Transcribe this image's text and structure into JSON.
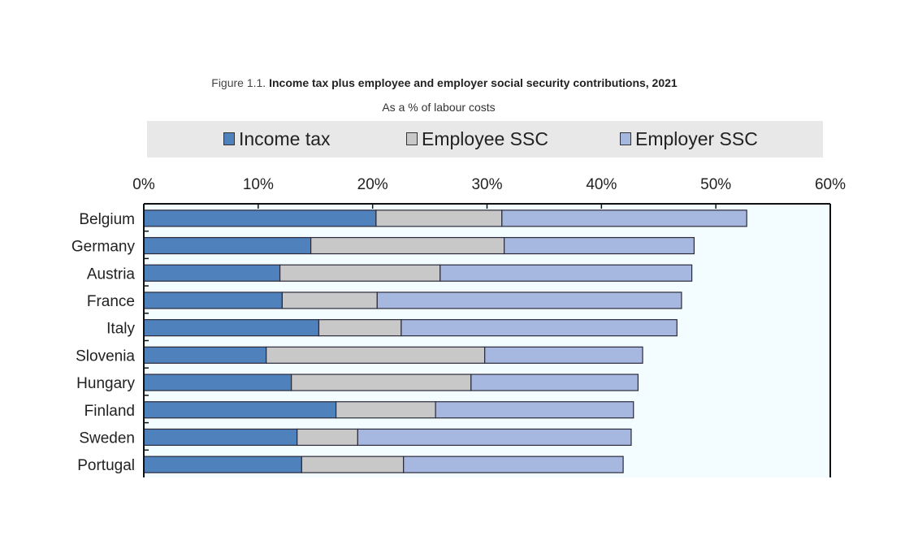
{
  "figure": {
    "prefix": "Figure 1.1.",
    "title": "Income tax plus employee and employer social security contributions, 2021",
    "subtitle": "As a % of labour costs"
  },
  "colors": {
    "income_tax": "#4f81bd",
    "employee_ssc": "#c8c8c8",
    "employer_ssc": "#a6b8e0",
    "plot_bg": "#f3fcff",
    "legend_bg": "#e8e8e8"
  },
  "chart_data": {
    "type": "bar",
    "orientation": "horizontal",
    "stacked": true,
    "title": "Income tax plus employee and employer social security contributions, 2021",
    "subtitle": "As a % of labour costs",
    "xlabel": "",
    "ylabel": "",
    "xlim": [
      0,
      60
    ],
    "x_ticks": [
      "0%",
      "10%",
      "20%",
      "30%",
      "40%",
      "50%",
      "60%"
    ],
    "x_tick_values": [
      0,
      10,
      20,
      30,
      40,
      50,
      60
    ],
    "legend_position": "top",
    "grid": false,
    "categories": [
      "Belgium",
      "Germany",
      "Austria",
      "France",
      "Italy",
      "Slovenia",
      "Hungary",
      "Finland",
      "Sweden",
      "Portugal"
    ],
    "series": [
      {
        "name": "Income tax",
        "key": "income_tax",
        "values": [
          20.3,
          14.6,
          11.9,
          12.1,
          15.3,
          10.7,
          12.9,
          16.8,
          13.4,
          13.8
        ]
      },
      {
        "name": "Employee SSC",
        "key": "employee_ssc",
        "values": [
          11.0,
          16.9,
          14.0,
          8.3,
          7.2,
          19.1,
          15.7,
          8.7,
          5.3,
          8.9
        ]
      },
      {
        "name": "Employer SSC",
        "key": "employer_ssc",
        "values": [
          21.4,
          16.6,
          22.0,
          26.6,
          24.1,
          13.8,
          14.6,
          17.3,
          23.9,
          19.2
        ]
      }
    ]
  }
}
